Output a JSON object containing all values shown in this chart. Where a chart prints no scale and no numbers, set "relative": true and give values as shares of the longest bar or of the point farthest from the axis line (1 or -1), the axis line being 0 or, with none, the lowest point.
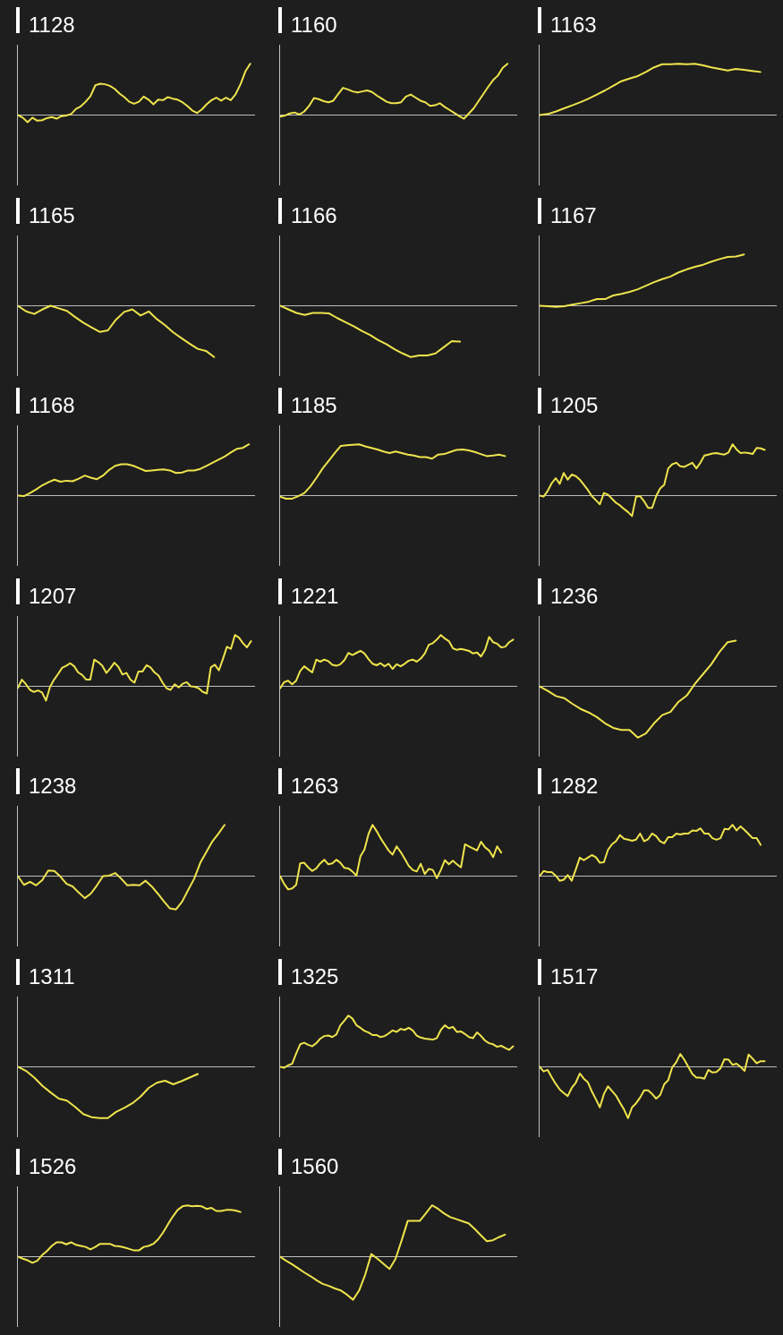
{
  "chart_data": [
    {
      "type": "line",
      "title": "1128",
      "relative": true,
      "color": "#efe44c",
      "categories": [
        null,
        null,
        null,
        null,
        null,
        null,
        null,
        null,
        null,
        null,
        null,
        null,
        null,
        null,
        null,
        null,
        null,
        null,
        null,
        null,
        null,
        null,
        null,
        null,
        null,
        null,
        null,
        null,
        null,
        null,
        null,
        null,
        null,
        null,
        null,
        null,
        null,
        null,
        null,
        null,
        null,
        null,
        null,
        null,
        null,
        null,
        null,
        null,
        null,
        null
      ],
      "values": [
        0,
        -0.05,
        -0.14,
        -0.05,
        -0.11,
        -0.1,
        -0.06,
        -0.04,
        -0.07,
        -0.02,
        -0.01,
        0.02,
        0.12,
        0.17,
        0.26,
        0.37,
        0.58,
        0.61,
        0.6,
        0.57,
        0.51,
        0.42,
        0.35,
        0.26,
        0.22,
        0.26,
        0.36,
        0.3,
        0.21,
        0.3,
        0.29,
        0.35,
        0.32,
        0.3,
        0.25,
        0.18,
        0.09,
        0.04,
        0.11,
        0.21,
        0.29,
        0.34,
        0.28,
        0.34,
        0.29,
        0.41,
        0.6,
        0.85,
        1.0,
        null
      ]
    },
    {
      "type": "line",
      "title": "1160",
      "relative": true,
      "color": "#efe44c",
      "categories": [
        null,
        null,
        null,
        null,
        null,
        null,
        null,
        null,
        null,
        null,
        null,
        null,
        null,
        null,
        null,
        null,
        null,
        null,
        null,
        null,
        null,
        null,
        null,
        null,
        null,
        null,
        null,
        null,
        null,
        null,
        null,
        null,
        null,
        null,
        null,
        null,
        null,
        null,
        null,
        null,
        null,
        null,
        null,
        null,
        null,
        null,
        null,
        null,
        null,
        null
      ],
      "values": [
        -0.03,
        -0.01,
        0.03,
        0.05,
        0.01,
        0.07,
        0.18,
        0.33,
        0.31,
        0.27,
        0.25,
        0.28,
        0.41,
        0.53,
        0.5,
        0.46,
        0.44,
        0.46,
        0.48,
        0.45,
        0.38,
        0.32,
        0.26,
        0.23,
        0.23,
        0.25,
        0.36,
        0.4,
        0.34,
        0.28,
        0.25,
        0.18,
        0.19,
        0.23,
        0.16,
        0.1,
        0.04,
        -0.02,
        -0.07,
        0.03,
        0.13,
        0.27,
        0.41,
        0.55,
        0.68,
        0.77,
        0.92,
        1.0,
        null,
        null
      ]
    },
    {
      "type": "line",
      "title": "1163",
      "relative": true,
      "color": "#efe44c",
      "categories": [
        null,
        null,
        null,
        null,
        null,
        null,
        null,
        null,
        null,
        null,
        null,
        null,
        null,
        null,
        null,
        null,
        null,
        null,
        null,
        null,
        null,
        null,
        null,
        null,
        null,
        null,
        null,
        null,
        null,
        null
      ],
      "values": [
        0,
        0.02,
        0.07,
        0.13,
        0.19,
        0.25,
        0.32,
        0.4,
        0.48,
        0.57,
        0.66,
        0.71,
        0.76,
        0.84,
        0.93,
        0.99,
        0.99,
        1.0,
        0.99,
        1.0,
        0.97,
        0.93,
        0.9,
        0.87,
        0.9,
        0.88,
        0.86,
        0.84,
        null,
        null
      ]
    },
    {
      "type": "line",
      "title": "1165",
      "relative": true,
      "color": "#efe44c",
      "categories": [
        null,
        null,
        null,
        null,
        null,
        null,
        null,
        null,
        null,
        null,
        null,
        null,
        null,
        null,
        null,
        null,
        null,
        null,
        null,
        null,
        null,
        null,
        null,
        null,
        null,
        null,
        null,
        null,
        null,
        null
      ],
      "values": [
        0,
        -0.11,
        -0.16,
        -0.07,
        0.0,
        -0.05,
        -0.1,
        -0.22,
        -0.33,
        -0.42,
        -0.51,
        -0.48,
        -0.27,
        -0.12,
        -0.07,
        -0.19,
        -0.11,
        -0.26,
        -0.38,
        -0.52,
        -0.63,
        -0.74,
        -0.84,
        -0.88,
        -1.0,
        null,
        null,
        null,
        null,
        null
      ]
    },
    {
      "type": "line",
      "title": "1166",
      "relative": true,
      "color": "#efe44c",
      "categories": [
        null,
        null,
        null,
        null,
        null,
        null,
        null,
        null,
        null,
        null,
        null,
        null,
        null,
        null,
        null,
        null,
        null,
        null,
        null,
        null,
        null,
        null,
        null,
        null,
        null,
        null,
        null,
        null,
        null,
        null
      ],
      "values": [
        0,
        -0.07,
        -0.14,
        -0.18,
        -0.14,
        -0.14,
        -0.15,
        -0.24,
        -0.32,
        -0.4,
        -0.49,
        -0.57,
        -0.67,
        -0.75,
        -0.85,
        -0.93,
        -1.0,
        -0.97,
        -0.97,
        -0.93,
        -0.81,
        -0.69,
        -0.7,
        null,
        null,
        null,
        null,
        null,
        null,
        null
      ]
    },
    {
      "type": "line",
      "title": "1167",
      "relative": true,
      "color": "#efe44c",
      "categories": [
        null,
        null,
        null,
        null,
        null,
        null,
        null,
        null,
        null,
        null,
        null,
        null,
        null,
        null,
        null,
        null,
        null,
        null,
        null,
        null,
        null,
        null,
        null,
        null,
        null,
        null,
        null,
        null,
        null,
        null
      ],
      "values": [
        0,
        -0.01,
        -0.02,
        -0.01,
        0.02,
        0.05,
        0.08,
        0.13,
        0.13,
        0.2,
        0.23,
        0.27,
        0.32,
        0.39,
        0.46,
        0.52,
        0.57,
        0.65,
        0.71,
        0.76,
        0.8,
        0.86,
        0.91,
        0.95,
        0.96,
        1.0,
        null,
        null,
        null,
        null
      ]
    },
    {
      "type": "line",
      "title": "1168",
      "relative": true,
      "color": "#efe44c",
      "categories": [
        null,
        null,
        null,
        null,
        null,
        null,
        null,
        null,
        null,
        null,
        null,
        null,
        null,
        null,
        null,
        null,
        null,
        null,
        null,
        null,
        null,
        null,
        null,
        null,
        null,
        null,
        null,
        null,
        null,
        null,
        null,
        null,
        null,
        null,
        null,
        null,
        null,
        null,
        null,
        null
      ],
      "values": [
        0,
        -0.01,
        0.05,
        0.12,
        0.2,
        0.26,
        0.31,
        0.27,
        0.29,
        0.28,
        0.33,
        0.39,
        0.35,
        0.32,
        0.39,
        0.5,
        0.58,
        0.61,
        0.61,
        0.58,
        0.53,
        0.48,
        0.49,
        0.5,
        0.51,
        0.49,
        0.44,
        0.45,
        0.49,
        0.49,
        0.52,
        0.58,
        0.64,
        0.7,
        0.76,
        0.84,
        0.91,
        0.93,
        1.0,
        null
      ]
    },
    {
      "type": "line",
      "title": "1185",
      "relative": true,
      "color": "#efe44c",
      "categories": [
        null,
        null,
        null,
        null,
        null,
        null,
        null,
        null,
        null,
        null,
        null,
        null,
        null,
        null,
        null,
        null,
        null,
        null,
        null,
        null,
        null,
        null,
        null,
        null,
        null,
        null,
        null,
        null,
        null,
        null,
        null,
        null,
        null,
        null,
        null,
        null,
        null,
        null,
        null,
        null
      ],
      "values": [
        -0.02,
        -0.06,
        -0.06,
        -0.01,
        0.05,
        0.18,
        0.35,
        0.53,
        0.68,
        0.83,
        0.97,
        0.98,
        0.99,
        1.0,
        0.96,
        0.93,
        0.9,
        0.86,
        0.83,
        0.86,
        0.83,
        0.8,
        0.78,
        0.75,
        0.75,
        0.72,
        0.8,
        0.81,
        0.85,
        0.89,
        0.9,
        0.88,
        0.85,
        0.81,
        0.77,
        0.78,
        0.8,
        0.77,
        null,
        null
      ]
    },
    {
      "type": "line",
      "title": "1205",
      "relative": true,
      "color": "#efe44c",
      "categories": [
        null,
        null,
        null,
        null,
        null,
        null,
        null,
        null,
        null,
        null,
        null,
        null,
        null,
        null,
        null,
        null,
        null,
        null,
        null,
        null,
        null,
        null,
        null,
        null,
        null,
        null,
        null,
        null,
        null,
        null,
        null,
        null,
        null,
        null,
        null,
        null,
        null,
        null,
        null,
        null,
        null,
        null,
        null,
        null,
        null,
        null,
        null,
        null,
        null,
        null,
        null,
        null,
        null,
        null,
        null,
        null,
        null,
        null,
        null,
        null
      ],
      "values": [
        0,
        -0.02,
        0.09,
        0.24,
        0.34,
        0.23,
        0.44,
        0.31,
        0.41,
        0.38,
        0.31,
        0.21,
        0.11,
        -0.01,
        -0.09,
        -0.17,
        0.05,
        0.02,
        -0.06,
        -0.14,
        -0.19,
        -0.26,
        -0.32,
        -0.4,
        -0.02,
        -0.01,
        -0.11,
        -0.24,
        -0.24,
        -0.01,
        0.14,
        0.21,
        0.53,
        0.61,
        0.64,
        0.57,
        0.56,
        0.6,
        0.64,
        0.53,
        0.64,
        0.78,
        0.8,
        0.82,
        0.83,
        0.81,
        0.8,
        0.84,
        1.0,
        0.9,
        0.83,
        0.84,
        0.83,
        0.81,
        0.93,
        0.92,
        0.89,
        null,
        null,
        null
      ]
    },
    {
      "type": "line",
      "title": "1207",
      "relative": true,
      "color": "#efe44c",
      "categories": [
        null,
        null,
        null,
        null,
        null,
        null,
        null,
        null,
        null,
        null,
        null,
        null,
        null,
        null,
        null,
        null,
        null,
        null,
        null,
        null,
        null,
        null,
        null,
        null,
        null,
        null,
        null,
        null,
        null,
        null,
        null,
        null,
        null,
        null,
        null,
        null,
        null,
        null,
        null,
        null,
        null,
        null,
        null,
        null,
        null,
        null,
        null,
        null,
        null,
        null,
        null,
        null,
        null,
        null,
        null,
        null,
        null,
        null,
        null,
        null
      ],
      "values": [
        -0.03,
        0.13,
        0.04,
        -0.07,
        -0.11,
        -0.08,
        -0.12,
        -0.28,
        -0.01,
        0.13,
        0.24,
        0.36,
        0.4,
        0.45,
        0.39,
        0.27,
        0.22,
        0.13,
        0.13,
        0.52,
        0.47,
        0.4,
        0.26,
        0.35,
        0.46,
        0.38,
        0.23,
        0.26,
        0.13,
        0.07,
        0.29,
        0.29,
        0.41,
        0.37,
        0.27,
        0.21,
        0.07,
        -0.04,
        -0.07,
        0.04,
        -0.02,
        0.05,
        0.08,
        0.0,
        -0.01,
        -0.04,
        -0.11,
        -0.14,
        0.37,
        0.42,
        0.31,
        0.53,
        0.77,
        0.73,
        1.0,
        0.95,
        0.84,
        0.76,
        0.88,
        null
      ]
    },
    {
      "type": "line",
      "title": "1221",
      "relative": true,
      "color": "#efe44c",
      "categories": [
        null,
        null,
        null,
        null,
        null,
        null,
        null,
        null,
        null,
        null,
        null,
        null,
        null,
        null,
        null,
        null,
        null,
        null,
        null,
        null,
        null,
        null,
        null,
        null,
        null,
        null,
        null,
        null,
        null,
        null,
        null,
        null,
        null,
        null,
        null,
        null,
        null,
        null,
        null,
        null,
        null,
        null,
        null,
        null,
        null,
        null,
        null,
        null,
        null,
        null,
        null,
        null,
        null,
        null,
        null,
        null,
        null,
        null,
        null,
        null
      ],
      "values": [
        -0.04,
        0.08,
        0.11,
        0.04,
        0.11,
        0.3,
        0.39,
        0.33,
        0.27,
        0.52,
        0.48,
        0.52,
        0.49,
        0.42,
        0.4,
        0.43,
        0.51,
        0.65,
        0.61,
        0.65,
        0.69,
        0.64,
        0.53,
        0.44,
        0.41,
        0.45,
        0.39,
        0.44,
        0.34,
        0.43,
        0.39,
        0.44,
        0.5,
        0.52,
        0.48,
        0.54,
        0.64,
        0.81,
        0.84,
        0.91,
        1.0,
        0.93,
        0.88,
        0.74,
        0.71,
        0.73,
        0.71,
        0.69,
        0.64,
        0.66,
        0.58,
        0.71,
        0.96,
        0.86,
        0.83,
        0.76,
        0.77,
        0.86,
        0.91,
        null
      ]
    },
    {
      "type": "line",
      "title": "1236",
      "relative": true,
      "color": "#efe44c",
      "categories": [
        null,
        null,
        null,
        null,
        null,
        null,
        null,
        null,
        null,
        null,
        null,
        null,
        null,
        null,
        null,
        null,
        null,
        null,
        null,
        null,
        null,
        null,
        null,
        null,
        null,
        null,
        null,
        null,
        null,
        null
      ],
      "values": [
        0,
        -0.09,
        -0.19,
        -0.23,
        -0.34,
        -0.44,
        -0.51,
        -0.6,
        -0.72,
        -0.81,
        -0.85,
        -0.85,
        -1.0,
        -0.92,
        -0.72,
        -0.56,
        -0.5,
        -0.3,
        -0.18,
        0.05,
        0.24,
        0.43,
        0.67,
        0.86,
        0.89,
        null,
        null,
        null,
        null,
        null
      ]
    },
    {
      "type": "line",
      "title": "1238",
      "relative": true,
      "color": "#efe44c",
      "categories": [
        null,
        null,
        null,
        null,
        null,
        null,
        null,
        null,
        null,
        null,
        null,
        null,
        null,
        null,
        null,
        null,
        null,
        null,
        null,
        null,
        null,
        null,
        null,
        null,
        null,
        null,
        null,
        null,
        null,
        null,
        null,
        null,
        null,
        null,
        null,
        null,
        null,
        null,
        null,
        null
      ],
      "values": [
        0,
        -0.17,
        -0.11,
        -0.18,
        -0.08,
        0.11,
        0.1,
        -0.01,
        -0.15,
        -0.2,
        -0.32,
        -0.43,
        -0.34,
        -0.18,
        0.0,
        0.01,
        0.06,
        -0.05,
        -0.18,
        -0.17,
        -0.18,
        -0.09,
        -0.2,
        -0.34,
        -0.49,
        -0.63,
        -0.65,
        -0.5,
        -0.27,
        -0.05,
        0.26,
        0.47,
        0.68,
        0.83,
        1.0,
        null,
        null,
        null,
        null,
        null
      ]
    },
    {
      "type": "line",
      "title": "1263",
      "relative": true,
      "color": "#efe44c",
      "categories": [
        null,
        null,
        null,
        null,
        null,
        null,
        null,
        null,
        null,
        null,
        null,
        null,
        null,
        null,
        null,
        null,
        null,
        null,
        null,
        null,
        null,
        null,
        null,
        null,
        null,
        null,
        null,
        null,
        null,
        null,
        null,
        null,
        null,
        null,
        null,
        null,
        null,
        null,
        null,
        null,
        null,
        null,
        null,
        null,
        null,
        null,
        null,
        null,
        null,
        null,
        null,
        null,
        null,
        null,
        null,
        null,
        null,
        null,
        null,
        null
      ],
      "values": [
        0,
        -0.15,
        -0.26,
        -0.24,
        -0.17,
        0.25,
        0.26,
        0.17,
        0.1,
        0.15,
        0.25,
        0.32,
        0.23,
        0.25,
        0.32,
        0.26,
        0.16,
        0.15,
        0.09,
        0.01,
        0.39,
        0.52,
        0.82,
        1.0,
        0.88,
        0.74,
        0.62,
        0.5,
        0.42,
        0.58,
        0.47,
        0.34,
        0.2,
        0.12,
        0.09,
        0.24,
        0.04,
        0.14,
        0.12,
        -0.04,
        0.12,
        0.31,
        0.23,
        0.3,
        0.23,
        0.17,
        0.62,
        0.58,
        0.54,
        0.5,
        0.67,
        0.56,
        0.5,
        0.37,
        0.58,
        0.46,
        null,
        null,
        null,
        null
      ]
    },
    {
      "type": "line",
      "title": "1282",
      "relative": true,
      "color": "#efe44c",
      "categories": [
        null,
        null,
        null,
        null,
        null,
        null,
        null,
        null,
        null,
        null,
        null,
        null,
        null,
        null,
        null,
        null,
        null,
        null,
        null,
        null,
        null,
        null,
        null,
        null,
        null,
        null,
        null,
        null,
        null,
        null,
        null,
        null,
        null,
        null,
        null,
        null,
        null,
        null,
        null,
        null,
        null,
        null,
        null,
        null,
        null,
        null,
        null,
        null,
        null,
        null,
        null,
        null,
        null,
        null,
        null,
        null,
        null,
        null,
        null,
        null
      ],
      "values": [
        0,
        0.1,
        0.08,
        0.08,
        0.01,
        -0.09,
        -0.07,
        0.02,
        -0.09,
        0.13,
        0.36,
        0.31,
        0.36,
        0.41,
        0.37,
        0.26,
        0.27,
        0.51,
        0.62,
        0.68,
        0.8,
        0.73,
        0.71,
        0.69,
        0.71,
        0.83,
        0.68,
        0.72,
        0.83,
        0.78,
        0.68,
        0.64,
        0.76,
        0.76,
        0.83,
        0.81,
        0.83,
        0.83,
        0.89,
        0.88,
        0.93,
        0.83,
        0.83,
        0.74,
        0.71,
        0.74,
        0.92,
        0.91,
        1.0,
        0.89,
        0.97,
        0.9,
        0.82,
        0.74,
        0.74,
        0.61,
        null,
        null,
        null,
        null
      ]
    },
    {
      "type": "line",
      "title": "1311",
      "relative": true,
      "color": "#efe44c",
      "categories": [
        null,
        null,
        null,
        null,
        null,
        null,
        null,
        null,
        null,
        null,
        null,
        null,
        null,
        null,
        null,
        null,
        null,
        null,
        null,
        null,
        null,
        null,
        null,
        null,
        null,
        null,
        null,
        null,
        null,
        null
      ],
      "values": [
        0,
        -0.08,
        -0.21,
        -0.37,
        -0.5,
        -0.62,
        -0.66,
        -0.78,
        -0.92,
        -0.98,
        -1.0,
        -1.0,
        -0.88,
        -0.8,
        -0.71,
        -0.58,
        -0.41,
        -0.31,
        -0.27,
        -0.34,
        -0.28,
        -0.21,
        -0.14,
        null,
        null,
        null,
        null,
        null,
        null,
        null
      ]
    },
    {
      "type": "line",
      "title": "1325",
      "relative": true,
      "color": "#efe44c",
      "categories": [
        null,
        null,
        null,
        null,
        null,
        null,
        null,
        null,
        null,
        null,
        null,
        null,
        null,
        null,
        null,
        null,
        null,
        null,
        null,
        null,
        null,
        null,
        null,
        null,
        null,
        null,
        null,
        null,
        null,
        null,
        null,
        null,
        null,
        null,
        null,
        null,
        null,
        null,
        null,
        null,
        null,
        null,
        null,
        null,
        null,
        null,
        null,
        null,
        null,
        null,
        null,
        null,
        null,
        null,
        null,
        null,
        null,
        null,
        null,
        null
      ],
      "values": [
        0,
        -0.02,
        0.03,
        0.06,
        0.26,
        0.44,
        0.47,
        0.43,
        0.4,
        0.46,
        0.55,
        0.6,
        0.61,
        0.58,
        0.63,
        0.81,
        0.9,
        1.0,
        0.94,
        0.81,
        0.76,
        0.7,
        0.67,
        0.62,
        0.62,
        0.58,
        0.6,
        0.65,
        0.71,
        0.68,
        0.74,
        0.72,
        0.76,
        0.71,
        0.61,
        0.57,
        0.55,
        0.54,
        0.53,
        0.56,
        0.72,
        0.81,
        0.75,
        0.78,
        0.68,
        0.69,
        0.64,
        0.58,
        0.56,
        0.67,
        0.6,
        0.51,
        0.46,
        0.44,
        0.39,
        0.41,
        0.37,
        0.33,
        0.4,
        null
      ]
    },
    {
      "type": "line",
      "title": "1517",
      "relative": true,
      "color": "#efe44c",
      "categories": [
        null,
        null,
        null,
        null,
        null,
        null,
        null,
        null,
        null,
        null,
        null,
        null,
        null,
        null,
        null,
        null,
        null,
        null,
        null,
        null,
        null,
        null,
        null,
        null,
        null,
        null,
        null,
        null,
        null,
        null,
        null,
        null,
        null,
        null,
        null,
        null,
        null,
        null,
        null,
        null,
        null,
        null,
        null,
        null,
        null,
        null,
        null,
        null,
        null,
        null,
        null,
        null,
        null,
        null,
        null,
        null,
        null,
        null,
        null,
        null
      ],
      "values": [
        0,
        -0.09,
        -0.06,
        -0.2,
        -0.33,
        -0.44,
        -0.51,
        -0.57,
        -0.41,
        -0.31,
        -0.13,
        -0.23,
        -0.3,
        -0.48,
        -0.63,
        -0.79,
        -0.53,
        -0.38,
        -0.47,
        -0.56,
        -0.7,
        -0.83,
        -1.0,
        -0.79,
        -0.71,
        -0.6,
        -0.46,
        -0.46,
        -0.53,
        -0.62,
        -0.55,
        -0.34,
        -0.26,
        -0.01,
        0.09,
        0.25,
        0.14,
        0.0,
        -0.14,
        -0.21,
        -0.21,
        -0.23,
        -0.06,
        -0.11,
        -0.1,
        -0.03,
        0.15,
        0.14,
        0.04,
        0.06,
        0.0,
        -0.08,
        0.24,
        0.16,
        0.07,
        0.11,
        0.11,
        null,
        null,
        null
      ]
    },
    {
      "type": "line",
      "title": "1526",
      "relative": true,
      "color": "#efe44c",
      "categories": [
        null,
        null,
        null,
        null,
        null,
        null,
        null,
        null,
        null,
        null,
        null,
        null,
        null,
        null,
        null,
        null,
        null,
        null,
        null,
        null,
        null,
        null,
        null,
        null,
        null,
        null,
        null,
        null,
        null,
        null,
        null,
        null,
        null,
        null,
        null,
        null,
        null,
        null,
        null,
        null,
        null,
        null,
        null,
        null,
        null,
        null,
        null,
        null,
        null,
        null
      ],
      "values": [
        0,
        -0.04,
        -0.07,
        -0.12,
        -0.08,
        0.03,
        0.11,
        0.21,
        0.28,
        0.28,
        0.24,
        0.28,
        0.23,
        0.21,
        0.19,
        0.14,
        0.19,
        0.25,
        0.25,
        0.25,
        0.21,
        0.2,
        0.18,
        0.15,
        0.12,
        0.12,
        0.19,
        0.21,
        0.25,
        0.34,
        0.47,
        0.63,
        0.78,
        0.91,
        0.98,
        1.0,
        0.98,
        0.99,
        0.98,
        0.93,
        0.95,
        0.89,
        0.89,
        0.91,
        0.91,
        0.9,
        0.87,
        null,
        null,
        null
      ]
    },
    {
      "type": "line",
      "title": "1560",
      "relative": true,
      "color": "#efe44c",
      "categories": [
        null,
        null,
        null,
        null,
        null,
        null,
        null,
        null,
        null,
        null,
        null,
        null,
        null,
        null,
        null,
        null,
        null,
        null,
        null,
        null,
        null,
        null,
        null,
        null,
        null,
        null,
        null,
        null,
        null,
        null,
        null,
        null,
        null,
        null,
        null,
        null,
        null,
        null,
        null,
        null
      ],
      "values": [
        0,
        -0.08,
        -0.15,
        -0.23,
        -0.31,
        -0.38,
        -0.46,
        -0.53,
        -0.57,
        -0.62,
        -0.66,
        -0.74,
        -0.84,
        -0.66,
        -0.35,
        0.05,
        -0.04,
        -0.14,
        -0.24,
        -0.04,
        0.32,
        0.7,
        0.7,
        0.7,
        0.85,
        1.0,
        0.93,
        0.84,
        0.77,
        0.73,
        0.69,
        0.65,
        0.54,
        0.42,
        0.3,
        0.32,
        0.38,
        0.43,
        null,
        null
      ]
    }
  ]
}
